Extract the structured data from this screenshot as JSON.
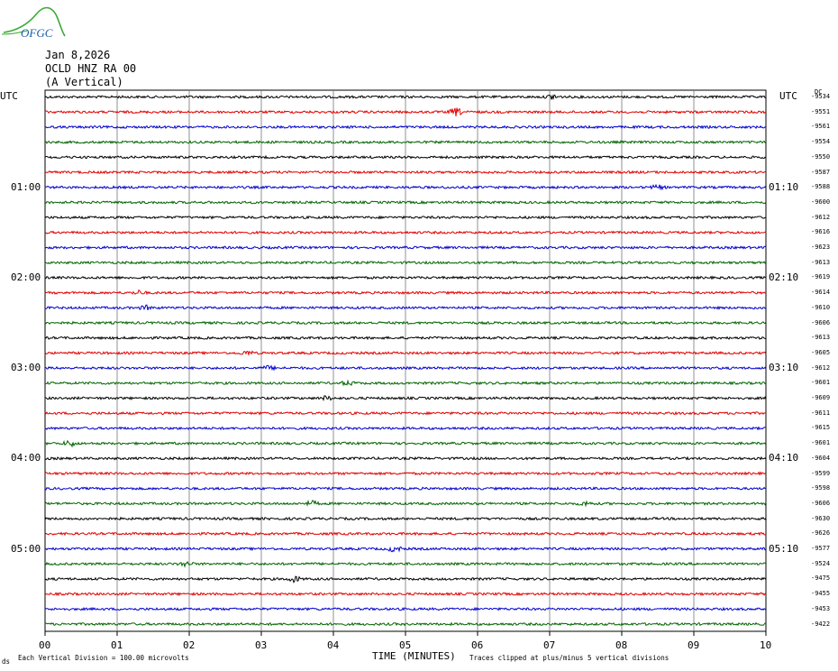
{
  "logo": {
    "text": "OFGC",
    "color": "#3aaa35",
    "text_color": "#1b5fa8"
  },
  "header": {
    "date": "Jan 8,2026",
    "station": "OCLD HNZ RA 00",
    "component": "(A Vertical)"
  },
  "left_axis": {
    "title": "UTC",
    "hour_labels": [
      "01:00",
      "02:00",
      "03:00",
      "04:00",
      "05:00"
    ]
  },
  "right_axis": {
    "title": "UTC",
    "hour_labels": [
      "01:10",
      "02:10",
      "03:10",
      "04:10",
      "05:10"
    ],
    "offset_title": "DC",
    "offsets": [
      "-9534",
      "-9551",
      "-9561",
      "-9554",
      "-9550",
      "-9587",
      "-9588",
      "-9600",
      "-9612",
      "-9616",
      "-9623",
      "-9613",
      "-9619",
      "-9614",
      "-9610",
      "-9606",
      "-9613",
      "-9605",
      "-9612",
      "-9601",
      "-9609",
      "-9611",
      "-9615",
      "-9601",
      "-9604",
      "-9599",
      "-9598",
      "-9606",
      "-9630",
      "-9626",
      "-9577",
      "-9524",
      "-9475",
      "-9455",
      "-9453",
      "-9422"
    ]
  },
  "footer": {
    "scale_note": "Each Vertical Division =  100.00 microvolts",
    "x_title": "TIME (MINUTES)",
    "clip_note": "Traces clipped at plus/minus 5 vertical divisions",
    "corner_mark": "ds"
  },
  "chart_data": {
    "type": "line",
    "title": "OCLD HNZ RA 00",
    "xlabel": "TIME (MINUTES)",
    "ylabel": "UTC",
    "xlim": [
      0,
      10
    ],
    "x_ticks": [
      "00",
      "01",
      "02",
      "03",
      "04",
      "05",
      "06",
      "07",
      "08",
      "09",
      "10"
    ],
    "trace_count": 36,
    "trace_colors": [
      "#000000",
      "#e00000",
      "#0000cc",
      "#006400"
    ],
    "grid": true,
    "events": [
      {
        "trace": 0,
        "minute": 7.05,
        "amp": 3
      },
      {
        "trace": 1,
        "minute": 5.7,
        "amp": 4
      },
      {
        "trace": 6,
        "minute": 8.5,
        "amp": 2
      },
      {
        "trace": 13,
        "minute": 1.3,
        "amp": 2
      },
      {
        "trace": 14,
        "minute": 1.4,
        "amp": 2
      },
      {
        "trace": 17,
        "minute": 2.8,
        "amp": 2
      },
      {
        "trace": 18,
        "minute": 3.1,
        "amp": 2
      },
      {
        "trace": 19,
        "minute": 4.2,
        "amp": 2
      },
      {
        "trace": 20,
        "minute": 3.9,
        "amp": 2
      },
      {
        "trace": 23,
        "minute": 0.35,
        "amp": 3
      },
      {
        "trace": 27,
        "minute": 3.7,
        "amp": 2.5
      },
      {
        "trace": 27,
        "minute": 7.5,
        "amp": 2
      },
      {
        "trace": 30,
        "minute": 4.85,
        "amp": 3
      },
      {
        "trace": 31,
        "minute": 1.95,
        "amp": 2.5
      },
      {
        "trace": 32,
        "minute": 3.45,
        "amp": 3
      }
    ]
  }
}
